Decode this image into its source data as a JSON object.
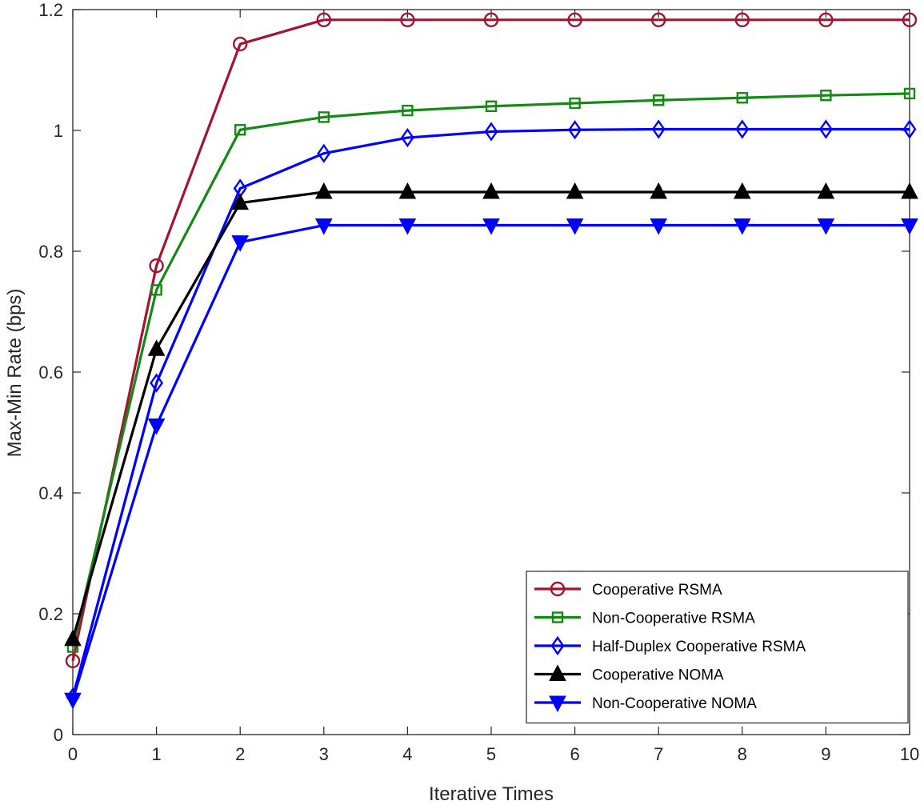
{
  "chart_data": {
    "type": "line",
    "title": "",
    "xlabel": "Iterative Times",
    "ylabel": "Max-Min Rate (bps)",
    "xlim": [
      0,
      10
    ],
    "ylim": [
      0,
      1.2
    ],
    "xticks": [
      "0",
      "1",
      "2",
      "3",
      "4",
      "5",
      "6",
      "7",
      "8",
      "9",
      "10"
    ],
    "yticks": [
      "0",
      "0.2",
      "0.4",
      "0.6",
      "0.8",
      "1",
      "1.2"
    ],
    "grid": false,
    "legend_position": "bottom-right",
    "x": [
      0,
      1,
      2,
      3,
      4,
      5,
      6,
      7,
      8,
      9,
      10
    ],
    "series": [
      {
        "name": "Cooperative RSMA",
        "color": "#a2142f",
        "marker": "circle",
        "values": [
          0.122,
          0.776,
          1.143,
          1.183,
          1.183,
          1.183,
          1.183,
          1.183,
          1.183,
          1.183,
          1.183
        ]
      },
      {
        "name": "Non-Cooperative RSMA",
        "color": "#138a13",
        "marker": "square",
        "values": [
          0.145,
          0.736,
          1.001,
          1.022,
          1.033,
          1.04,
          1.045,
          1.05,
          1.054,
          1.058,
          1.061
        ]
      },
      {
        "name": "Half-Duplex Cooperative RSMA",
        "color": "#0000ff",
        "marker": "diamond",
        "values": [
          0.062,
          0.582,
          0.904,
          0.962,
          0.988,
          0.998,
          1.001,
          1.002,
          1.002,
          1.002,
          1.002
        ]
      },
      {
        "name": "Cooperative NOMA",
        "color": "#000000",
        "marker": "triangle-up",
        "values": [
          0.158,
          0.638,
          0.88,
          0.898,
          0.898,
          0.898,
          0.898,
          0.898,
          0.898,
          0.898,
          0.898
        ]
      },
      {
        "name": "Non-Cooperative NOMA",
        "color": "#0000ff",
        "marker": "triangle-down",
        "values": [
          0.058,
          0.512,
          0.815,
          0.843,
          0.843,
          0.843,
          0.843,
          0.843,
          0.843,
          0.843,
          0.843
        ]
      }
    ]
  }
}
